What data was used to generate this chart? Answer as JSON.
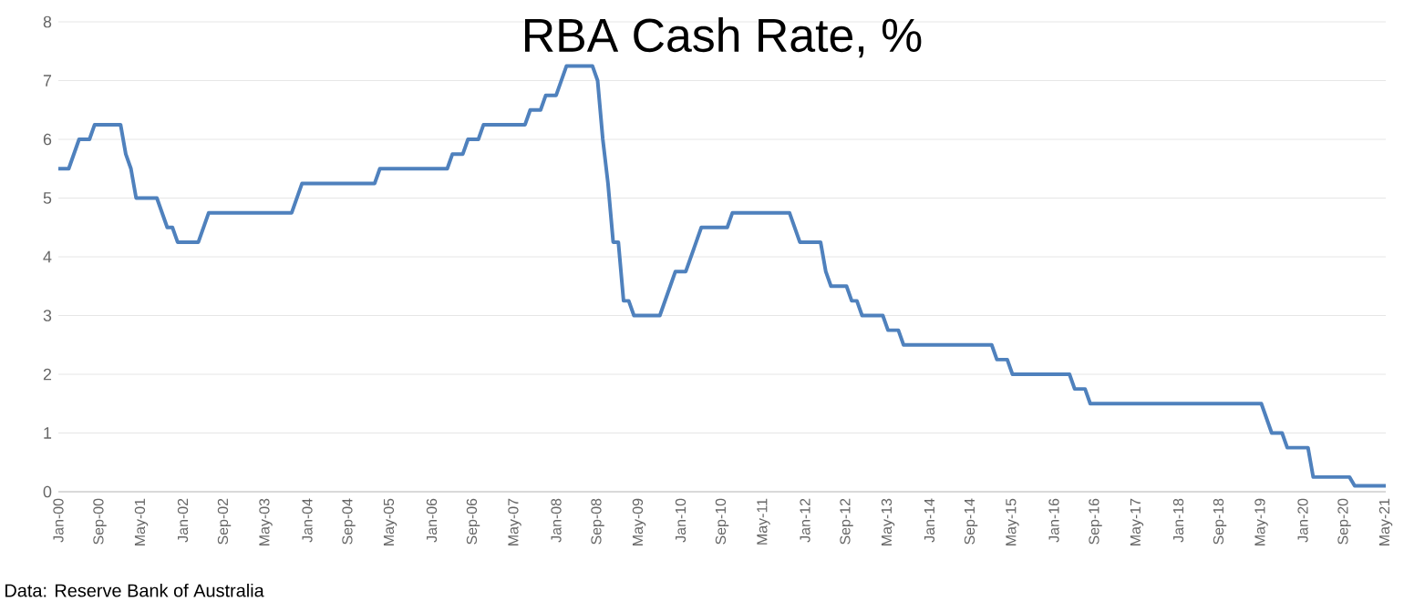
{
  "chart_data": {
    "type": "line",
    "title": "RBA Cash Rate, %",
    "x": [
      "2000-01",
      "2000-03",
      "2000-04",
      "2000-05",
      "2000-07",
      "2000-08",
      "2001-01",
      "2001-02",
      "2001-03",
      "2001-04",
      "2001-08",
      "2001-09",
      "2001-10",
      "2001-11",
      "2001-12",
      "2002-04",
      "2002-05",
      "2002-06",
      "2003-10",
      "2003-11",
      "2003-12",
      "2005-02",
      "2005-03",
      "2006-04",
      "2006-05",
      "2006-07",
      "2006-08",
      "2006-10",
      "2006-11",
      "2007-07",
      "2007-08",
      "2007-10",
      "2007-11",
      "2008-01",
      "2008-02",
      "2008-03",
      "2008-08",
      "2008-09",
      "2008-10",
      "2008-11",
      "2008-12",
      "2009-01",
      "2009-02",
      "2009-03",
      "2009-04",
      "2009-09",
      "2009-10",
      "2009-11",
      "2009-12",
      "2010-02",
      "2010-03",
      "2010-04",
      "2010-05",
      "2010-10",
      "2010-11",
      "2011-10",
      "2011-11",
      "2011-12",
      "2012-04",
      "2012-05",
      "2012-06",
      "2012-09",
      "2012-10",
      "2012-11",
      "2012-12",
      "2013-04",
      "2013-05",
      "2013-07",
      "2013-08",
      "2015-01",
      "2015-02",
      "2015-04",
      "2015-05",
      "2016-04",
      "2016-05",
      "2016-07",
      "2016-08",
      "2019-05",
      "2019-06",
      "2019-07",
      "2019-09",
      "2019-10",
      "2020-02",
      "2020-03",
      "2020-10",
      "2020-11",
      "2021-05"
    ],
    "values": [
      5.5,
      5.5,
      5.75,
      6.0,
      6.0,
      6.25,
      6.25,
      5.75,
      5.5,
      5.0,
      5.0,
      4.75,
      4.5,
      4.5,
      4.25,
      4.25,
      4.5,
      4.75,
      4.75,
      5.0,
      5.25,
      5.25,
      5.5,
      5.5,
      5.75,
      5.75,
      6.0,
      6.0,
      6.25,
      6.25,
      6.5,
      6.5,
      6.75,
      6.75,
      7.0,
      7.25,
      7.25,
      7.0,
      6.0,
      5.25,
      4.25,
      4.25,
      3.25,
      3.25,
      3.0,
      3.0,
      3.25,
      3.5,
      3.75,
      3.75,
      4.0,
      4.25,
      4.5,
      4.5,
      4.75,
      4.75,
      4.5,
      4.25,
      4.25,
      3.75,
      3.5,
      3.5,
      3.25,
      3.25,
      3.0,
      3.0,
      2.75,
      2.75,
      2.5,
      2.5,
      2.25,
      2.25,
      2.0,
      2.0,
      1.75,
      1.75,
      1.5,
      1.5,
      1.25,
      1.0,
      1.0,
      0.75,
      0.75,
      0.25,
      0.25,
      0.1,
      0.1
    ],
    "color": "#4f81bd",
    "xlim": [
      "2000-01",
      "2021-05"
    ],
    "xticks": [
      {
        "value": "2000-01",
        "label": "Jan-00"
      },
      {
        "value": "2000-09",
        "label": "Sep-00"
      },
      {
        "value": "2001-05",
        "label": "May-01"
      },
      {
        "value": "2002-01",
        "label": "Jan-02"
      },
      {
        "value": "2002-09",
        "label": "Sep-02"
      },
      {
        "value": "2003-05",
        "label": "May-03"
      },
      {
        "value": "2004-01",
        "label": "Jan-04"
      },
      {
        "value": "2004-09",
        "label": "Sep-04"
      },
      {
        "value": "2005-05",
        "label": "May-05"
      },
      {
        "value": "2006-01",
        "label": "Jan-06"
      },
      {
        "value": "2006-09",
        "label": "Sep-06"
      },
      {
        "value": "2007-05",
        "label": "May-07"
      },
      {
        "value": "2008-01",
        "label": "Jan-08"
      },
      {
        "value": "2008-09",
        "label": "Sep-08"
      },
      {
        "value": "2009-05",
        "label": "May-09"
      },
      {
        "value": "2010-01",
        "label": "Jan-10"
      },
      {
        "value": "2010-09",
        "label": "Sep-10"
      },
      {
        "value": "2011-05",
        "label": "May-11"
      },
      {
        "value": "2012-01",
        "label": "Jan-12"
      },
      {
        "value": "2012-09",
        "label": "Sep-12"
      },
      {
        "value": "2013-05",
        "label": "May-13"
      },
      {
        "value": "2014-01",
        "label": "Jan-14"
      },
      {
        "value": "2014-09",
        "label": "Sep-14"
      },
      {
        "value": "2015-05",
        "label": "May-15"
      },
      {
        "value": "2016-01",
        "label": "Jan-16"
      },
      {
        "value": "2016-09",
        "label": "Sep-16"
      },
      {
        "value": "2017-05",
        "label": "May-17"
      },
      {
        "value": "2018-01",
        "label": "Jan-18"
      },
      {
        "value": "2018-09",
        "label": "Sep-18"
      },
      {
        "value": "2019-05",
        "label": "May-19"
      },
      {
        "value": "2020-01",
        "label": "Jan-20"
      },
      {
        "value": "2020-09",
        "label": "Sep-20"
      },
      {
        "value": "2021-05",
        "label": "May-21"
      }
    ],
    "ylim": [
      0,
      8
    ],
    "yticks": [
      0,
      1,
      2,
      3,
      4,
      5,
      6,
      7,
      8
    ],
    "grid": "y",
    "annotations": [
      "Data: Reserve Bank of Australia"
    ]
  }
}
